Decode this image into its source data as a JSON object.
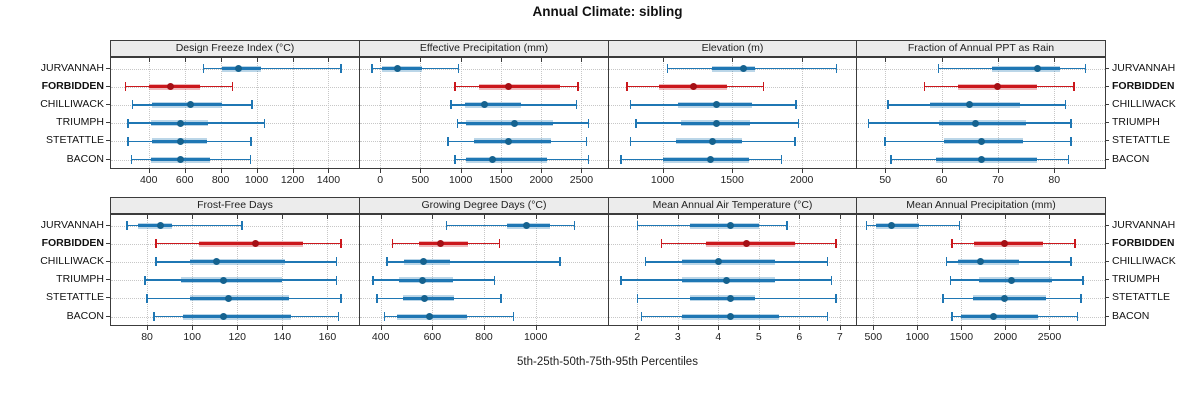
{
  "title": "Annual Climate: sibling",
  "caption": "5th-25th-50th-75th-95th Percentiles",
  "colors": {
    "blue": "#1f77b4",
    "blue_dot": "#15628f",
    "red": "#cb181d",
    "red_dot": "#a50f15",
    "strip_bg": "#ececec",
    "border": "#3c3c3c",
    "grid": "#c7c7c7"
  },
  "stations": [
    {
      "name": "JURVANNAH",
      "bold": false
    },
    {
      "name": "FORBIDDEN",
      "bold": true
    },
    {
      "name": "CHILLIWACK",
      "bold": false
    },
    {
      "name": "TRIUMPH",
      "bold": false
    },
    {
      "name": "STETATTLE",
      "bold": false
    },
    {
      "name": "BACON",
      "bold": false
    }
  ],
  "chart_data": {
    "type": "interval",
    "glyph": "horizontal percentile intervals: thin line p5-p95 with end caps, thick band p25-p75, dot at p50 (median)",
    "legend_position": "none",
    "grid": "dotted",
    "stations": [
      "JURVANNAH",
      "FORBIDDEN",
      "CHILLIWACK",
      "TRIUMPH",
      "STETATTLE",
      "BACON"
    ],
    "highlighted_station": "FORBIDDEN",
    "percentile_labels": [
      "p5",
      "p25",
      "p50",
      "p75",
      "p95"
    ],
    "panels": [
      {
        "title": "Design Freeze Index (°C)",
        "row": 0,
        "col": 0,
        "xlim": [
          190,
          1570
        ],
        "ticks": [
          400,
          600,
          800,
          1000,
          1200,
          1400
        ],
        "values": {
          "JURVANNAH": [
            705,
            805,
            900,
            1025,
            1470
          ],
          "FORBIDDEN": [
            270,
            400,
            520,
            685,
            865
          ],
          "CHILLIWACK": [
            310,
            420,
            635,
            805,
            975
          ],
          "TRIUMPH": [
            285,
            415,
            578,
            730,
            1045
          ],
          "STETATTLE": [
            285,
            420,
            575,
            725,
            970
          ],
          "BACON": [
            305,
            410,
            575,
            740,
            965
          ]
        }
      },
      {
        "title": "Effective Precipitation (mm)",
        "row": 0,
        "col": 1,
        "xlim": [
          -250,
          2830
        ],
        "ticks": [
          0,
          500,
          1000,
          1500,
          2000,
          2500
        ],
        "values": {
          "JURVANNAH": [
            -100,
            25,
            220,
            520,
            975
          ],
          "FORBIDDEN": [
            930,
            1230,
            1600,
            2230,
            2460
          ],
          "CHILLIWACK": [
            880,
            1060,
            1290,
            1745,
            2440
          ],
          "TRIUMPH": [
            960,
            1065,
            1670,
            2150,
            2590
          ],
          "STETATTLE": [
            845,
            1170,
            1590,
            2120,
            2565
          ],
          "BACON": [
            930,
            1065,
            1400,
            2075,
            2590
          ]
        }
      },
      {
        "title": "Elevation (m)",
        "row": 0,
        "col": 2,
        "xlim": [
          615,
          2390
        ],
        "ticks": [
          1000,
          1500,
          2000
        ],
        "values": {
          "JURVANNAH": [
            1035,
            1355,
            1585,
            1665,
            2250
          ],
          "FORBIDDEN": [
            745,
            975,
            1220,
            1465,
            1725
          ],
          "CHILLIWACK": [
            770,
            1110,
            1390,
            1645,
            1960
          ],
          "TRIUMPH": [
            810,
            1130,
            1385,
            1630,
            1975
          ],
          "STETATTLE": [
            770,
            1095,
            1360,
            1570,
            1950
          ],
          "BACON": [
            700,
            1000,
            1345,
            1620,
            1855
          ]
        }
      },
      {
        "title": "Fraction of Annual PPT as Rain",
        "row": 0,
        "col": 3,
        "xlim": [
          45,
          89
        ],
        "ticks": [
          50,
          60,
          70,
          80
        ],
        "values": {
          "JURVANNAH": [
            59.5,
            69,
            77,
            81,
            85.5
          ],
          "FORBIDDEN": [
            57,
            63,
            70,
            77,
            83.5
          ],
          "CHILLIWACK": [
            50.5,
            58,
            65,
            74,
            82
          ],
          "TRIUMPH": [
            47,
            59.5,
            66,
            75,
            83
          ],
          "STETATTLE": [
            50,
            60.5,
            67,
            74.5,
            83
          ],
          "BACON": [
            51,
            59,
            67,
            77,
            82.5
          ]
        }
      },
      {
        "title": "Frost-Free Days",
        "row": 1,
        "col": 0,
        "xlim": [
          64,
          174
        ],
        "ticks": [
          80,
          100,
          120,
          140,
          160
        ],
        "values": {
          "JURVANNAH": [
            71,
            76,
            86,
            91,
            122
          ],
          "FORBIDDEN": [
            84,
            103,
            128,
            149,
            166
          ],
          "CHILLIWACK": [
            84,
            99,
            111,
            141,
            164
          ],
          "TRIUMPH": [
            79,
            95,
            114,
            140,
            164
          ],
          "STETATTLE": [
            80,
            99,
            116,
            143,
            166
          ],
          "BACON": [
            83,
            96,
            114,
            144,
            165
          ]
        }
      },
      {
        "title": "Growing Degree Days (°C)",
        "row": 1,
        "col": 1,
        "xlim": [
          320,
          1280
        ],
        "ticks": [
          400,
          600,
          800,
          1000
        ],
        "values": {
          "JURVANNAH": [
            655,
            890,
            965,
            1055,
            1150
          ],
          "FORBIDDEN": [
            445,
            550,
            630,
            740,
            860
          ],
          "CHILLIWACK": [
            425,
            490,
            565,
            670,
            1095
          ],
          "TRIUMPH": [
            370,
            470,
            560,
            680,
            840
          ],
          "STETATTLE": [
            385,
            485,
            570,
            685,
            865
          ],
          "BACON": [
            415,
            465,
            590,
            735,
            915
          ]
        }
      },
      {
        "title": "Mean Annual Air Temperature (°C)",
        "row": 1,
        "col": 2,
        "xlim": [
          1.3,
          7.4
        ],
        "ticks": [
          2,
          3,
          4,
          5,
          6,
          7
        ],
        "values": {
          "JURVANNAH": [
            2.0,
            3.3,
            4.3,
            5.0,
            5.7
          ],
          "FORBIDDEN": [
            2.6,
            3.7,
            4.7,
            5.9,
            6.9
          ],
          "CHILLIWACK": [
            2.2,
            3.1,
            4.0,
            5.4,
            6.7
          ],
          "TRIUMPH": [
            1.6,
            3.1,
            4.2,
            5.4,
            6.8
          ],
          "STETATTLE": [
            2.0,
            3.3,
            4.3,
            4.9,
            6.9
          ],
          "BACON": [
            2.1,
            3.1,
            4.3,
            5.5,
            6.7
          ]
        }
      },
      {
        "title": "Mean Annual Precipitation (mm)",
        "row": 1,
        "col": 3,
        "xlim": [
          315,
          3130
        ],
        "ticks": [
          500,
          1000,
          1500,
          2000,
          2500
        ],
        "values": {
          "JURVANNAH": [
            425,
            530,
            710,
            1020,
            1480
          ],
          "FORBIDDEN": [
            1395,
            1640,
            1985,
            2430,
            2790
          ],
          "CHILLIWACK": [
            1330,
            1460,
            1715,
            2150,
            2745
          ],
          "TRIUMPH": [
            1375,
            1695,
            2065,
            2525,
            2880
          ],
          "STETATTLE": [
            1290,
            1630,
            1985,
            2460,
            2855
          ],
          "BACON": [
            1395,
            1490,
            1865,
            2375,
            2820
          ]
        }
      }
    ]
  }
}
